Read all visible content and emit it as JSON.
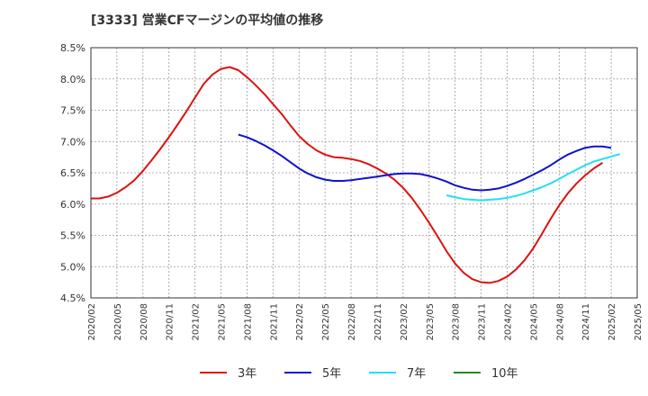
{
  "chart_data": {
    "type": "line",
    "title": "[3333]  営業CFマージンの平均値の推移",
    "xlabel": "",
    "ylabel": "",
    "ylim": [
      4.5,
      8.5
    ],
    "yticks": [
      "4.5%",
      "5.0%",
      "5.5%",
      "6.0%",
      "6.5%",
      "7.0%",
      "7.5%",
      "8.0%",
      "8.5%"
    ],
    "xticks": [
      "2020/02",
      "2020/05",
      "2020/08",
      "2020/11",
      "2021/02",
      "2021/05",
      "2021/08",
      "2021/11",
      "2022/02",
      "2022/05",
      "2022/08",
      "2022/11",
      "2023/02",
      "2023/05",
      "2023/08",
      "2023/11",
      "2024/02",
      "2024/05",
      "2024/08",
      "2024/11",
      "2025/02",
      "2025/05"
    ],
    "grid": true,
    "legend_position": "bottom",
    "series": [
      {
        "name": "3年",
        "color": "#dd1111",
        "points": [
          [
            "2020/02",
            6.09
          ],
          [
            "2020/03",
            6.09
          ],
          [
            "2020/04",
            6.12
          ],
          [
            "2020/05",
            6.18
          ],
          [
            "2020/06",
            6.27
          ],
          [
            "2020/07",
            6.38
          ],
          [
            "2020/08",
            6.53
          ],
          [
            "2020/09",
            6.7
          ],
          [
            "2020/10",
            6.88
          ],
          [
            "2020/11",
            7.07
          ],
          [
            "2020/12",
            7.27
          ],
          [
            "2021/01",
            7.48
          ],
          [
            "2021/02",
            7.7
          ],
          [
            "2021/03",
            7.92
          ],
          [
            "2021/04",
            8.07
          ],
          [
            "2021/05",
            8.16
          ],
          [
            "2021/06",
            8.19
          ],
          [
            "2021/07",
            8.14
          ],
          [
            "2021/08",
            8.03
          ],
          [
            "2021/09",
            7.9
          ],
          [
            "2021/10",
            7.76
          ],
          [
            "2021/11",
            7.6
          ],
          [
            "2021/12",
            7.44
          ],
          [
            "2022/01",
            7.26
          ],
          [
            "2022/02",
            7.09
          ],
          [
            "2022/03",
            6.96
          ],
          [
            "2022/04",
            6.86
          ],
          [
            "2022/05",
            6.79
          ],
          [
            "2022/06",
            6.75
          ],
          [
            "2022/07",
            6.74
          ],
          [
            "2022/08",
            6.72
          ],
          [
            "2022/09",
            6.69
          ],
          [
            "2022/10",
            6.64
          ],
          [
            "2022/11",
            6.57
          ],
          [
            "2022/12",
            6.49
          ],
          [
            "2023/01",
            6.39
          ],
          [
            "2023/02",
            6.26
          ],
          [
            "2023/03",
            6.1
          ],
          [
            "2023/04",
            5.91
          ],
          [
            "2023/05",
            5.7
          ],
          [
            "2023/06",
            5.48
          ],
          [
            "2023/07",
            5.25
          ],
          [
            "2023/08",
            5.05
          ],
          [
            "2023/09",
            4.9
          ],
          [
            "2023/10",
            4.8
          ],
          [
            "2023/11",
            4.75
          ],
          [
            "2023/12",
            4.74
          ],
          [
            "2024/01",
            4.77
          ],
          [
            "2024/02",
            4.84
          ],
          [
            "2024/03",
            4.95
          ],
          [
            "2024/04",
            5.1
          ],
          [
            "2024/05",
            5.29
          ],
          [
            "2024/06",
            5.52
          ],
          [
            "2024/07",
            5.76
          ],
          [
            "2024/08",
            5.98
          ],
          [
            "2024/09",
            6.17
          ],
          [
            "2024/10",
            6.33
          ],
          [
            "2024/11",
            6.46
          ],
          [
            "2024/12",
            6.57
          ],
          [
            "2025/01",
            6.66
          ]
        ]
      },
      {
        "name": "5年",
        "color": "#1111cc",
        "points": [
          [
            "2021/07",
            7.11
          ],
          [
            "2021/08",
            7.07
          ],
          [
            "2021/09",
            7.01
          ],
          [
            "2021/10",
            6.94
          ],
          [
            "2021/11",
            6.86
          ],
          [
            "2021/12",
            6.77
          ],
          [
            "2022/01",
            6.67
          ],
          [
            "2022/02",
            6.57
          ],
          [
            "2022/03",
            6.49
          ],
          [
            "2022/04",
            6.43
          ],
          [
            "2022/05",
            6.39
          ],
          [
            "2022/06",
            6.37
          ],
          [
            "2022/07",
            6.37
          ],
          [
            "2022/08",
            6.38
          ],
          [
            "2022/09",
            6.4
          ],
          [
            "2022/10",
            6.42
          ],
          [
            "2022/11",
            6.44
          ],
          [
            "2022/12",
            6.46
          ],
          [
            "2023/01",
            6.48
          ],
          [
            "2023/02",
            6.49
          ],
          [
            "2023/03",
            6.49
          ],
          [
            "2023/04",
            6.48
          ],
          [
            "2023/05",
            6.45
          ],
          [
            "2023/06",
            6.41
          ],
          [
            "2023/07",
            6.36
          ],
          [
            "2023/08",
            6.3
          ],
          [
            "2023/09",
            6.26
          ],
          [
            "2023/10",
            6.23
          ],
          [
            "2023/11",
            6.22
          ],
          [
            "2023/12",
            6.23
          ],
          [
            "2024/01",
            6.25
          ],
          [
            "2024/02",
            6.29
          ],
          [
            "2024/03",
            6.34
          ],
          [
            "2024/04",
            6.4
          ],
          [
            "2024/05",
            6.47
          ],
          [
            "2024/06",
            6.54
          ],
          [
            "2024/07",
            6.62
          ],
          [
            "2024/08",
            6.71
          ],
          [
            "2024/09",
            6.79
          ],
          [
            "2024/10",
            6.85
          ],
          [
            "2024/11",
            6.9
          ],
          [
            "2024/12",
            6.92
          ],
          [
            "2025/01",
            6.92
          ],
          [
            "2025/02",
            6.9
          ]
        ]
      },
      {
        "name": "7年",
        "color": "#22e0f0",
        "points": [
          [
            "2023/07",
            6.14
          ],
          [
            "2023/08",
            6.11
          ],
          [
            "2023/09",
            6.08
          ],
          [
            "2023/10",
            6.07
          ],
          [
            "2023/11",
            6.06
          ],
          [
            "2023/12",
            6.07
          ],
          [
            "2024/01",
            6.08
          ],
          [
            "2024/02",
            6.1
          ],
          [
            "2024/03",
            6.13
          ],
          [
            "2024/04",
            6.17
          ],
          [
            "2024/05",
            6.22
          ],
          [
            "2024/06",
            6.27
          ],
          [
            "2024/07",
            6.33
          ],
          [
            "2024/08",
            6.4
          ],
          [
            "2024/09",
            6.48
          ],
          [
            "2024/10",
            6.55
          ],
          [
            "2024/11",
            6.62
          ],
          [
            "2024/12",
            6.68
          ],
          [
            "2025/01",
            6.72
          ],
          [
            "2025/02",
            6.76
          ],
          [
            "2025/03",
            6.8
          ]
        ]
      },
      {
        "name": "10年",
        "color": "#228822",
        "points": []
      }
    ]
  }
}
